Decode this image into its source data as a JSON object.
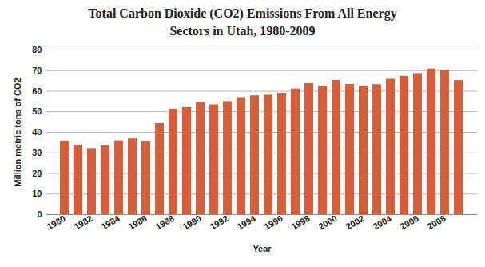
{
  "chart_data": {
    "type": "bar",
    "title": "Total Carbon Dioxide (CO2) Emissions From All Energy Sectors in Utah, 1980-2009",
    "x_label": "Year",
    "y_label": "Million metric tons of CO2",
    "categories": [
      "1980",
      null,
      "1982",
      null,
      "1984",
      null,
      "1986",
      null,
      "1988",
      null,
      "1990",
      null,
      "1992",
      null,
      "1994",
      null,
      "1996",
      null,
      "1998",
      null,
      "2000",
      null,
      "2002",
      null,
      "2004",
      null,
      "2006",
      null,
      "2008",
      null
    ],
    "values": [
      35.8,
      33.6,
      32.1,
      33.4,
      35.9,
      36.8,
      35.7,
      44.3,
      51.3,
      52.1,
      54.6,
      53.4,
      55.0,
      56.9,
      57.8,
      58.1,
      59.0,
      61.1,
      63.7,
      62.4,
      65.3,
      63.3,
      62.5,
      63.2,
      65.8,
      67.3,
      68.6,
      70.8,
      70.3,
      65.2
    ],
    "color": "#d35f3b",
    "ylim": [
      0,
      80
    ],
    "yticks": [
      0,
      10,
      20,
      30,
      40,
      50,
      60,
      70,
      80
    ],
    "grid": true
  }
}
